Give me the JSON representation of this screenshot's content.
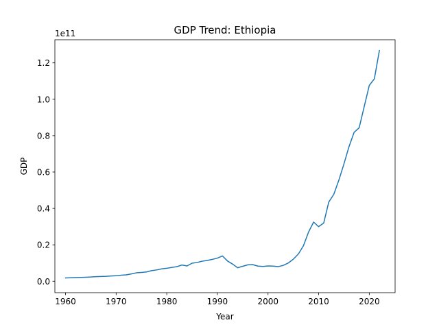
{
  "chart_data": {
    "type": "line",
    "title": "GDP Trend: Ethiopia",
    "xlabel": "Year",
    "ylabel": "GDP",
    "y_offset_label": "1e11",
    "xlim": [
      1957.9,
      2025.1
    ],
    "ylim": [
      -0.063,
      1.327
    ],
    "y_scale_factor": 100000000000.0,
    "grid": false,
    "legend": "none",
    "x_ticks": [
      1960,
      1970,
      1980,
      1990,
      2000,
      2010,
      2020
    ],
    "x_tick_labels": [
      "1960",
      "1970",
      "1980",
      "1990",
      "2000",
      "2010",
      "2020"
    ],
    "y_ticks": [
      0.0,
      0.2,
      0.4,
      0.6,
      0.8,
      1.0,
      1.2
    ],
    "y_tick_labels": [
      "0.0",
      "0.2",
      "0.4",
      "0.6",
      "0.8",
      "1.0",
      "1.2"
    ],
    "series": [
      {
        "color": "#1f77b4",
        "x": [
          1960,
          1961,
          1962,
          1963,
          1964,
          1965,
          1966,
          1967,
          1968,
          1969,
          1970,
          1971,
          1972,
          1973,
          1974,
          1975,
          1976,
          1977,
          1978,
          1979,
          1980,
          1981,
          1982,
          1983,
          1984,
          1985,
          1986,
          1987,
          1988,
          1989,
          1990,
          1991,
          1992,
          1993,
          1994,
          1995,
          1996,
          1997,
          1998,
          1999,
          2000,
          2001,
          2002,
          2003,
          2004,
          2005,
          2006,
          2007,
          2008,
          2009,
          2010,
          2011,
          2012,
          2013,
          2014,
          2015,
          2016,
          2017,
          2018,
          2019,
          2020,
          2021,
          2022
        ],
        "y": [
          0.018,
          0.019,
          0.02,
          0.021,
          0.022,
          0.023,
          0.025,
          0.026,
          0.027,
          0.029,
          0.03,
          0.033,
          0.035,
          0.04,
          0.046,
          0.048,
          0.051,
          0.058,
          0.062,
          0.068,
          0.071,
          0.076,
          0.08,
          0.089,
          0.084,
          0.099,
          0.103,
          0.11,
          0.114,
          0.12,
          0.127,
          0.139,
          0.111,
          0.094,
          0.074,
          0.082,
          0.09,
          0.091,
          0.083,
          0.081,
          0.084,
          0.083,
          0.08,
          0.087,
          0.1,
          0.121,
          0.15,
          0.195,
          0.27,
          0.325,
          0.3,
          0.32,
          0.435,
          0.478,
          0.556,
          0.645,
          0.74,
          0.818,
          0.843,
          0.96,
          1.076,
          1.112,
          1.268
        ]
      }
    ]
  }
}
